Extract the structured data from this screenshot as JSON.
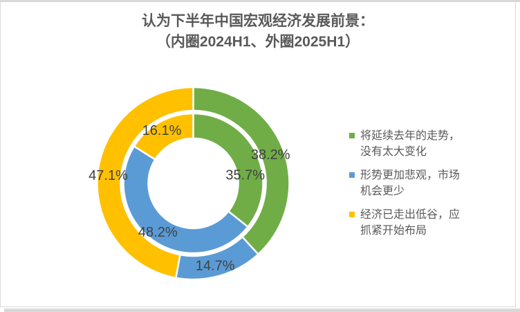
{
  "frame": {
    "background": "#ffffff",
    "border_color": "#d9d9d9",
    "shadow_color": "#d9d9d9"
  },
  "title": {
    "line1": "认为下半年中国宏观经济发展前景：",
    "line2": "（内圈2024H1、外圈2025H1）",
    "color": "#595959"
  },
  "chart_data": {
    "type": "pie",
    "subtype": "double-ring-donut",
    "title": "认为下半年中国宏观经济发展前景：（内圈2024H1、外圈2025H1）",
    "categories": [
      "将延续去年的走势，没有太大变化",
      "形势更加悲观，市场机会更少",
      "经济已走出低谷，应抓紧开始布局"
    ],
    "colors": [
      "#70AD47",
      "#5B9BD5",
      "#FFC000"
    ],
    "series": [
      {
        "name": "2024H1",
        "ring": "inner",
        "values": [
          35.7,
          48.2,
          16.1
        ],
        "labels": [
          "35.7%",
          "48.2%",
          "16.1%"
        ]
      },
      {
        "name": "2025H1",
        "ring": "outer",
        "values": [
          38.2,
          14.7,
          47.1
        ],
        "labels": [
          "38.2%",
          "14.7%",
          "47.1%"
        ]
      }
    ],
    "label_color": "#404040",
    "segment_border_color": "#ffffff",
    "start_angle_deg": 0,
    "direction": "clockwise",
    "legend_position": "right",
    "grid": false
  },
  "legend": {
    "text_color": "#595959",
    "items": [
      {
        "line1": "将延续去年的走势，",
        "line2": "没有太大变化",
        "color": "#70AD47"
      },
      {
        "line1": "形势更加悲观，市场",
        "line2": "机会更少",
        "color": "#5B9BD5"
      },
      {
        "line1": "经济已走出低谷，应",
        "line2": "抓紧开始布局",
        "color": "#FFC000"
      }
    ]
  }
}
